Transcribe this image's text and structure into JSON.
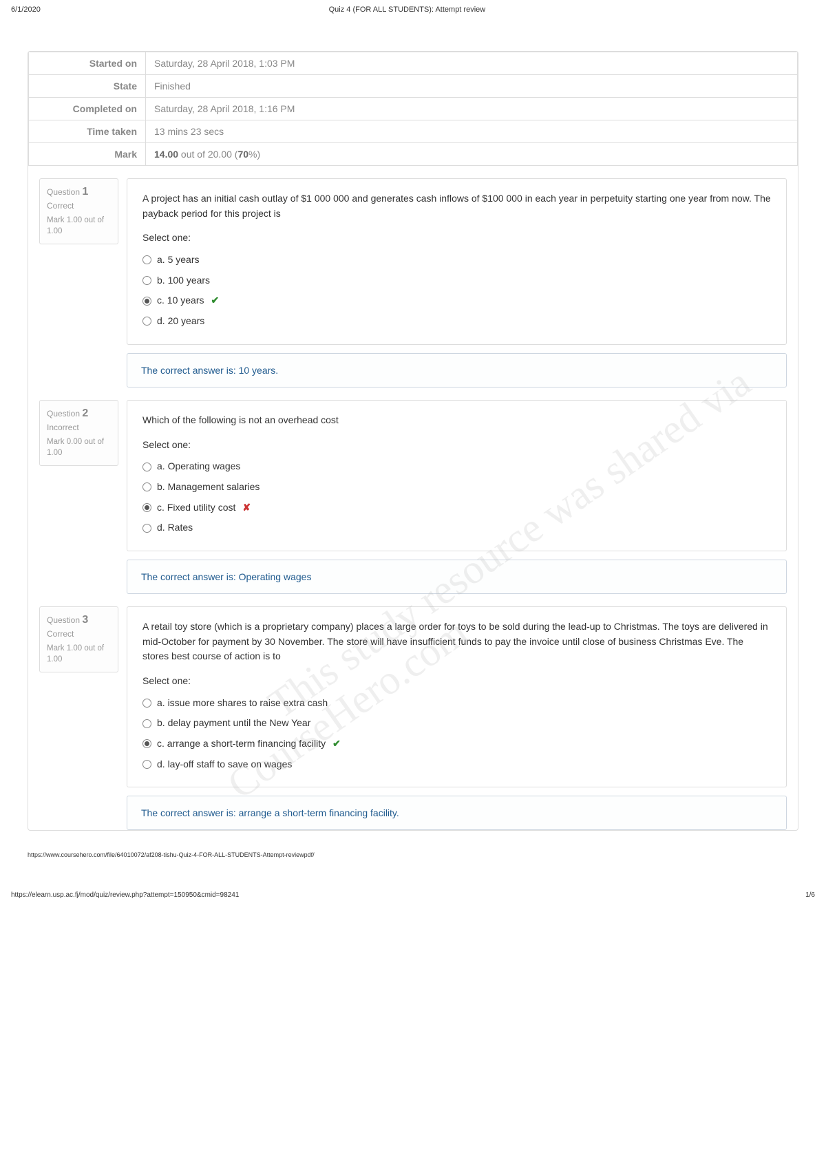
{
  "header": {
    "date": "6/1/2020",
    "title": "Quiz 4 (FOR ALL STUDENTS): Attempt review"
  },
  "summary": {
    "started_on_label": "Started on",
    "started_on": "Saturday, 28 April 2018, 1:03 PM",
    "state_label": "State",
    "state": "Finished",
    "completed_on_label": "Completed on",
    "completed_on": "Saturday, 28 April 2018, 1:16 PM",
    "time_taken_label": "Time taken",
    "time_taken": "13 mins 23 secs",
    "mark_label": "Mark",
    "mark_bold": "14.00",
    "mark_mid": " out of 20.00 (",
    "mark_pct": "70",
    "mark_end": "%)"
  },
  "questions": [
    {
      "number": "1",
      "label": "Question",
      "status": "Correct",
      "mark": "Mark 1.00 out of 1.00",
      "text": "A project has an initial cash outlay of $1 000 000 and generates cash inflows of $100 000 in each year in perpetuity starting one year from now. The payback period for this project is",
      "select_one": "Select one:",
      "options": [
        {
          "label": "a. 5 years",
          "selected": false,
          "mark": ""
        },
        {
          "label": "b. 100 years",
          "selected": false,
          "mark": ""
        },
        {
          "label": "c. 10 years",
          "selected": true,
          "mark": "check"
        },
        {
          "label": "d. 20 years",
          "selected": false,
          "mark": ""
        }
      ],
      "feedback": "The correct answer is: 10 years."
    },
    {
      "number": "2",
      "label": "Question",
      "status": "Incorrect",
      "mark": "Mark 0.00 out of 1.00",
      "text": "Which of the following is not an overhead cost",
      "select_one": "Select one:",
      "options": [
        {
          "label": "a. Operating wages",
          "selected": false,
          "mark": ""
        },
        {
          "label": "b. Management salaries",
          "selected": false,
          "mark": ""
        },
        {
          "label": "c. Fixed utility cost",
          "selected": true,
          "mark": "cross"
        },
        {
          "label": "d. Rates",
          "selected": false,
          "mark": ""
        }
      ],
      "feedback": "The correct answer is: Operating wages"
    },
    {
      "number": "3",
      "label": "Question",
      "status": "Correct",
      "mark": "Mark 1.00 out of 1.00",
      "text": "A retail toy store (which is a proprietary company) places a large order for toys to be sold during the lead-up to Christmas. The toys are delivered in mid-October for payment by 30 November. The store will have insufficient funds to pay the invoice until close of business Christmas Eve. The stores best course of action is to",
      "select_one": "Select one:",
      "options": [
        {
          "label": "a. issue more shares to raise extra cash",
          "selected": false,
          "mark": ""
        },
        {
          "label": "b. delay payment until the New Year",
          "selected": false,
          "mark": ""
        },
        {
          "label": "c. arrange a short-term financing facility",
          "selected": true,
          "mark": "check"
        },
        {
          "label": "d. lay-off staff to save on wages",
          "selected": false,
          "mark": ""
        }
      ],
      "feedback": "The correct answer is: arrange a short-term financing facility."
    }
  ],
  "watermarks": {
    "wm1": "This study resource was shared via",
    "wm2": "CourseHero.com"
  },
  "footer": {
    "coursehero_url": "https://www.coursehero.com/file/64010072/af208-tishu-Quiz-4-FOR-ALL-STUDENTS-Attempt-reviewpdf/",
    "source_url": "https://elearn.usp.ac.fj/mod/quiz/review.php?attempt=150950&cmid=98241",
    "page_num": "1/6"
  }
}
